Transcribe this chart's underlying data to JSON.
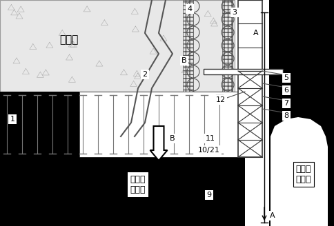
{
  "bg_color": "#ffffff",
  "black_color": "#000000",
  "gray_color": "#808080",
  "light_gray": "#d0d0d0",
  "dark_gray": "#404040",
  "line_color": "#555555",
  "box_bg": "#ffffff",
  "text_color": "#000000",
  "labels": {
    "cai_kong_qu": "采空区",
    "shang_qu_duan": "上区段\n工作面",
    "xia_qu_duan": "下区段\n工作面",
    "label_1": "1",
    "label_2": "2",
    "label_3": "3",
    "label_4": "4",
    "label_5": "5",
    "label_6": "6",
    "label_7": "7",
    "label_8": "8",
    "label_9": "9",
    "label_10_21": "10/21",
    "label_11": "11",
    "label_12": "12",
    "label_A": "A",
    "label_B": "B"
  }
}
